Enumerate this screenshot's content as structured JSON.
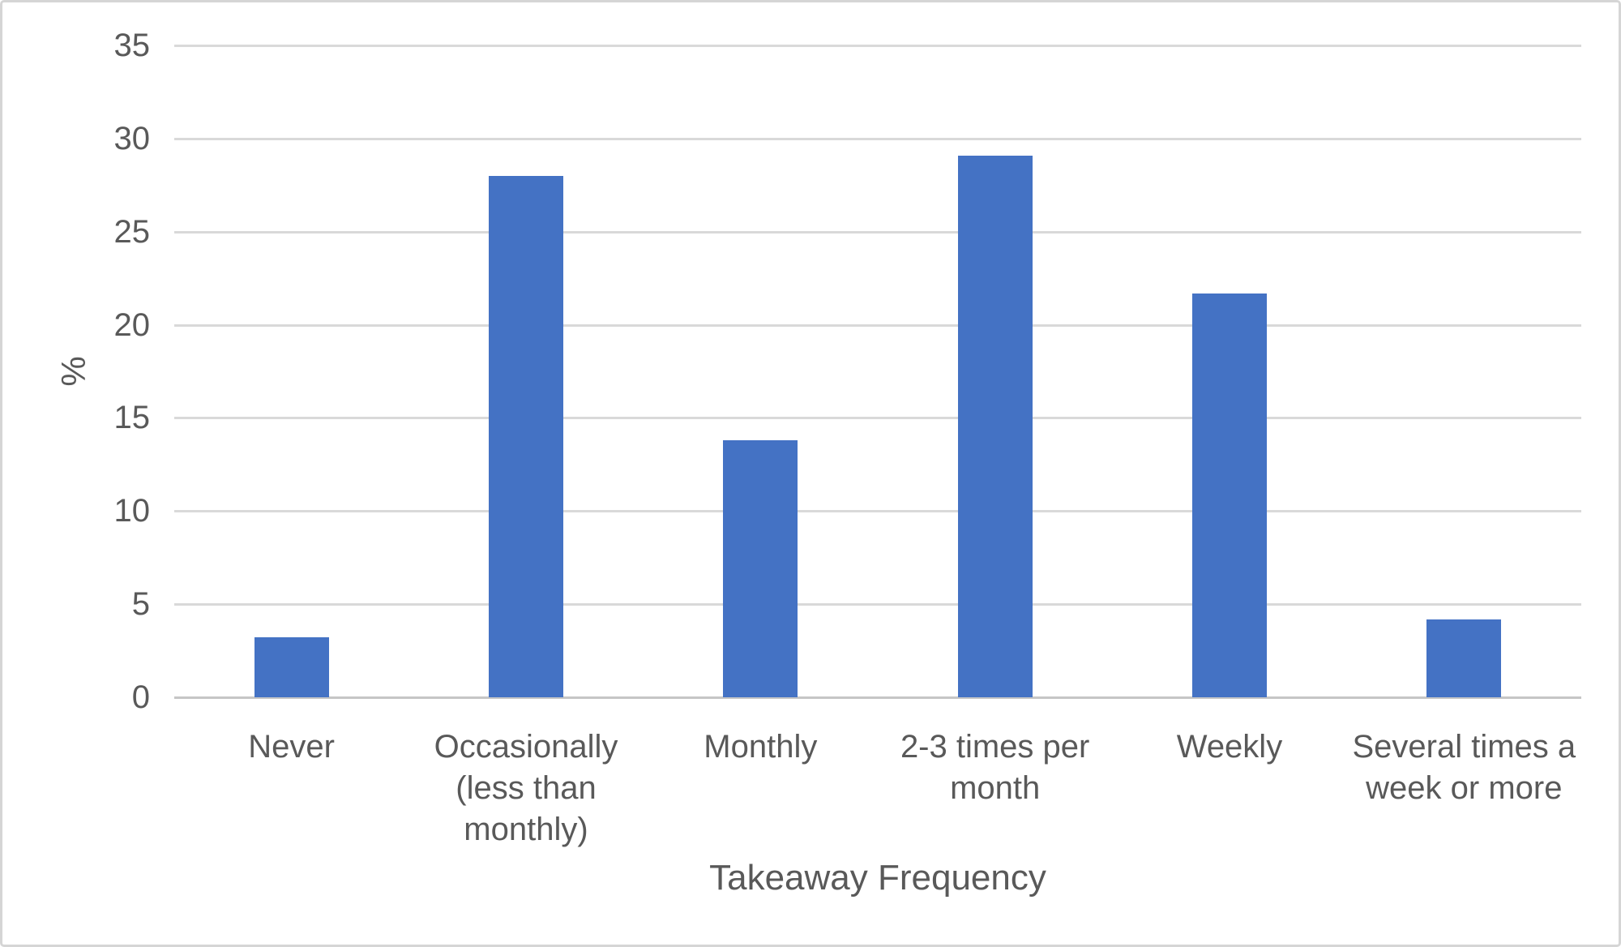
{
  "chart_data": {
    "type": "bar",
    "title": "",
    "categories": [
      "Never",
      "Occasionally (less than monthly)",
      "Monthly",
      "2-3 times per month",
      "Weekly",
      "Several times a week or more"
    ],
    "values": [
      3.2,
      28.0,
      13.8,
      29.1,
      21.7,
      4.2
    ],
    "xlabel": "Takeaway Frequency",
    "ylabel": "%",
    "ylim": [
      0,
      35
    ],
    "ytick_step": 5,
    "ytick_labels": [
      "0",
      "5",
      "10",
      "15",
      "20",
      "25",
      "30",
      "35"
    ],
    "grid": true,
    "legend_position": "none",
    "bar_color": "#4472c4",
    "gridline_color": "#d9d9d9",
    "axis_line_color": "#c6c6c6",
    "text_color": "#595959"
  }
}
